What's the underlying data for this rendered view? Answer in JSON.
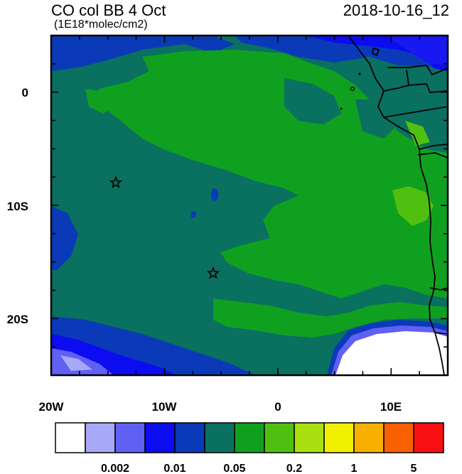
{
  "header": {
    "title": "CO col BB 4 Oct",
    "units": "(1E18*molec/cm2)",
    "datetime": "2018-10-16_12"
  },
  "axes": {
    "lon_range": [
      -20,
      15
    ],
    "lat_range": [
      -25,
      5
    ],
    "lon_ticks": [
      {
        "value": -20,
        "label": "20W"
      },
      {
        "value": -10,
        "label": "10W"
      },
      {
        "value": 0,
        "label": "0"
      },
      {
        "value": 10,
        "label": "10E"
      }
    ],
    "lat_ticks": [
      {
        "value": 0,
        "label": "0"
      },
      {
        "value": -10,
        "label": "10S"
      },
      {
        "value": -20,
        "label": "20S"
      }
    ]
  },
  "markers": [
    {
      "name": "star",
      "lon": -14.3,
      "lat": -8.0
    },
    {
      "name": "star",
      "lon": -5.7,
      "lat": -16.0
    }
  ],
  "colorbar": {
    "colors": [
      "#ffffff",
      "#a8a8f8",
      "#6060f4",
      "#0c0cf0",
      "#0a3ab8",
      "#0a7060",
      "#10a020",
      "#50c010",
      "#a8e010",
      "#f0f000",
      "#f8b000",
      "#f86000",
      "#f81010"
    ],
    "labels": [
      {
        "boundary": 2,
        "text": "0.002"
      },
      {
        "boundary": 4,
        "text": "0.01"
      },
      {
        "boundary": 6,
        "text": "0.05"
      },
      {
        "boundary": 8,
        "text": "0.2"
      },
      {
        "boundary": 10,
        "text": "1"
      },
      {
        "boundary": 12,
        "text": "5"
      }
    ]
  }
}
